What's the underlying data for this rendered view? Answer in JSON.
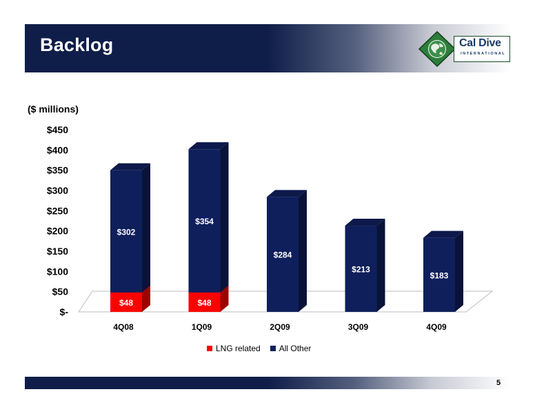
{
  "header": {
    "title": "Backlog"
  },
  "logo": {
    "name": "Cal Dive",
    "sub": "INTERNATIONAL"
  },
  "page": {
    "number": "5"
  },
  "chart_data": {
    "type": "bar",
    "stacked": true,
    "unit_label": "($ millions)",
    "categories": [
      "4Q08",
      "1Q09",
      "2Q09",
      "3Q09",
      "4Q09"
    ],
    "series": [
      {
        "name": "LNG related",
        "values": [
          48,
          48,
          0,
          0,
          0
        ],
        "labels": [
          "$48",
          "$48",
          "",
          "",
          ""
        ],
        "color": "#ff0000"
      },
      {
        "name": "All Other",
        "values": [
          302,
          354,
          284,
          213,
          183
        ],
        "labels": [
          "$302",
          "$354",
          "$284",
          "$213",
          "$183"
        ],
        "color": "#0f1f5c"
      }
    ],
    "yticks": [
      "$-",
      "$50",
      "$100",
      "$150",
      "$200",
      "$250",
      "$300",
      "$350",
      "$400",
      "$450"
    ],
    "ylim": [
      0,
      450
    ],
    "legend_position": "bottom",
    "grid": false
  }
}
